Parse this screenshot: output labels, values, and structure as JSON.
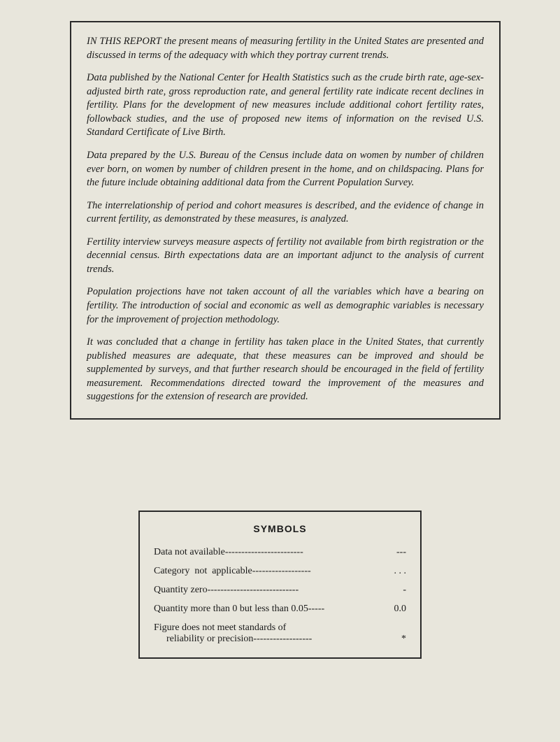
{
  "report": {
    "paragraphs": [
      "IN THIS REPORT the present means of measuring fertility in the United States are presented and discussed in terms of the adequacy with which they portray current trends.",
      "Data published by the National Center for Health Statistics such as the crude birth rate, age-sex-adjusted birth rate, gross reproduction rate, and general fertility rate indicate recent declines in fertility. Plans for the development of new measures include additional cohort fertility rates, followback studies, and the use of proposed new items of information on the revised U.S. Standard Certificate of Live Birth.",
      "Data prepared by the U.S. Bureau of the Census include data on women by number of children ever born, on women by number of children present in the home, and on childspacing. Plans for the future include obtaining additional data from the Current Population Survey.",
      "The interrelationship of period and cohort measures is described, and the evidence of change in current fertility, as demonstrated by these measures, is analyzed.",
      "Fertility interview surveys measure aspects of fertility not available from birth registration or the decennial census. Birth expectations data are an important adjunct to the analysis of current trends.",
      "Population projections have not taken account of all the variables which have a bearing on fertility. The introduction of social and economic as well as demographic variables is necessary for the improvement of projection methodology.",
      "It was concluded that a change in fertility has taken place in the United States, that currently published measures are adequate, that these measures can be improved and should be supplemented by surveys, and that further research should be encouraged in the field of fertility measurement. Recommendations directed toward the improvement of the measures and suggestions for the extension of research are provided."
    ]
  },
  "symbols": {
    "title": "SYMBOLS",
    "rows": [
      {
        "label": "Data not available------------------------",
        "value": "---"
      },
      {
        "label": "Category  not  applicable------------------",
        "value": ". . ."
      },
      {
        "label": "Quantity zero----------------------------",
        "value": "-"
      },
      {
        "label": "Quantity more than 0 but less than 0.05-----",
        "value": "0.0"
      }
    ],
    "multiline": {
      "line1": "Figure does not meet standards of",
      "line2_label": "reliability or precision------------------",
      "value": "*"
    }
  },
  "colors": {
    "background": "#e8e6dc",
    "border": "#2a2a2a",
    "text": "#1a1a1a"
  }
}
